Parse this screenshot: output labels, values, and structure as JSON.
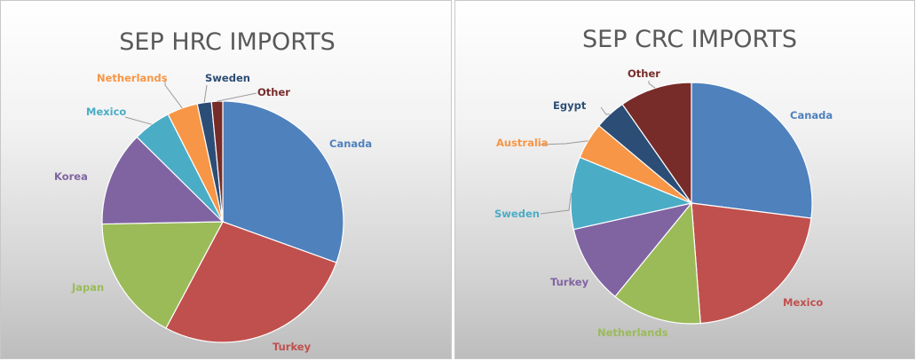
{
  "chart_data": [
    {
      "type": "pie",
      "title": "SEP HRC IMPORTS",
      "categories": [
        "Canada",
        "Turkey",
        "Japan",
        "Korea",
        "Mexico",
        "Netherlands",
        "Sweden",
        "Other"
      ],
      "values": [
        30.5,
        27.3,
        16.9,
        12.7,
        5.1,
        4.1,
        1.9,
        1.5
      ],
      "colors": [
        "#4f81bd",
        "#c0504d",
        "#9bbb59",
        "#8064a2",
        "#4bacc6",
        "#f79646",
        "#2c4d75",
        "#772c2a"
      ],
      "legend": "none (data labels)"
    },
    {
      "type": "pie",
      "title": "SEP CRC IMPORTS",
      "categories": [
        "Canada",
        "Mexico",
        "Netherlands",
        "Turkey",
        "Sweden",
        "Australia",
        "Egypt",
        "Other"
      ],
      "values": [
        27.0,
        21.8,
        12.1,
        10.6,
        9.7,
        4.9,
        4.2,
        9.7
      ],
      "colors": [
        "#4f81bd",
        "#c0504d",
        "#9bbb59",
        "#8064a2",
        "#4bacc6",
        "#f79646",
        "#2c4d75",
        "#772c2a"
      ],
      "legend": "none (data labels)"
    }
  ]
}
